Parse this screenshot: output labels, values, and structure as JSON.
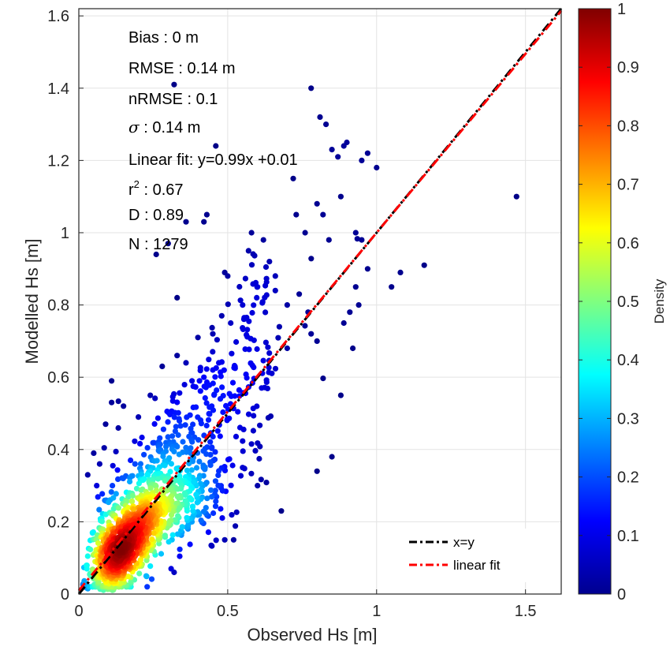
{
  "chart_data": {
    "type": "scatter",
    "xlabel": "Observed Hs [m]",
    "ylabel": "Modelled  Hs [m]",
    "xlim": [
      0,
      1.62
    ],
    "ylim": [
      0,
      1.62
    ],
    "x_ticks": [
      0,
      0.5,
      1,
      1.5
    ],
    "x_tick_labels": [
      "0",
      "0.5",
      "1",
      "1.5"
    ],
    "y_ticks": [
      0,
      0.2,
      0.4,
      0.6,
      0.8,
      1,
      1.2,
      1.4,
      1.6
    ],
    "y_tick_labels": [
      "0",
      "0.2",
      "0.4",
      "0.6",
      "0.8",
      "1",
      "1.2",
      "1.4",
      "1.6"
    ],
    "grid": true,
    "colorbar": {
      "label": "Density",
      "range": [
        0,
        1
      ],
      "ticks": [
        0,
        0.1,
        0.2,
        0.3,
        0.4,
        0.5,
        0.6,
        0.7,
        0.8,
        0.9,
        1
      ],
      "tick_labels": [
        "0",
        "0.1",
        "0.2",
        "0.3",
        "0.4",
        "0.5",
        "0.6",
        "0.7",
        "0.8",
        "0.9",
        "1"
      ],
      "colormap": "jet"
    },
    "stats": {
      "bias": "Bias : 0 m",
      "rmse": "RMSE : 0.14 m",
      "nrmse": "nRMSE : 0.1",
      "sigma_symbol": "σ",
      "sigma_value": " : 0.14 m",
      "linear_fit": "Linear fit: y=0.99x +0.01",
      "r2_prefix": "r",
      "r2_sup": "2",
      "r2_value": " : 0.67",
      "d": "D : 0.89",
      "n": "N : 1279"
    },
    "legend": {
      "placement": "bottom-right",
      "entries": [
        {
          "label": "x=y",
          "color": "#000000"
        },
        {
          "label": "linear fit",
          "color": "#ff0000"
        }
      ]
    },
    "lines": [
      {
        "name": "x=y",
        "slope": 1.0,
        "intercept": 0.0,
        "color": "#000000",
        "style": "dash-dot"
      },
      {
        "name": "linear fit",
        "slope": 0.99,
        "intercept": 0.01,
        "color": "#ff0000",
        "style": "dash-dot"
      }
    ],
    "points": [
      [
        1.47,
        1.1
      ],
      [
        1.16,
        0.91
      ],
      [
        1.08,
        0.89
      ],
      [
        1.05,
        0.85
      ],
      [
        0.78,
        1.4
      ],
      [
        0.81,
        1.32
      ],
      [
        0.83,
        1.3
      ],
      [
        0.9,
        1.25
      ],
      [
        0.89,
        1.24
      ],
      [
        0.97,
        1.22
      ],
      [
        0.95,
        1.2
      ],
      [
        1.0,
        1.18
      ],
      [
        0.85,
        1.23
      ],
      [
        0.87,
        1.21
      ],
      [
        0.32,
        1.41
      ],
      [
        0.46,
        1.24
      ],
      [
        0.43,
        1.05
      ],
      [
        0.42,
        1.03
      ],
      [
        0.36,
        1.03
      ],
      [
        0.26,
        0.94
      ],
      [
        0.3,
        0.97
      ],
      [
        0.49,
        0.89
      ],
      [
        0.5,
        0.88
      ],
      [
        0.57,
        0.95
      ],
      [
        0.58,
        1.0
      ],
      [
        0.62,
        0.98
      ],
      [
        0.64,
        0.92
      ],
      [
        0.66,
        0.88
      ],
      [
        0.72,
        1.15
      ],
      [
        0.73,
        1.05
      ],
      [
        0.76,
        1.0
      ],
      [
        0.8,
        1.08
      ],
      [
        0.82,
        1.05
      ],
      [
        0.84,
        0.98
      ],
      [
        0.88,
        1.1
      ],
      [
        0.93,
        1.0
      ],
      [
        0.95,
        0.98
      ],
      [
        0.97,
        0.9
      ],
      [
        0.93,
        0.85
      ],
      [
        0.94,
        0.8
      ],
      [
        0.91,
        0.78
      ],
      [
        0.89,
        0.75
      ],
      [
        0.92,
        0.68
      ],
      [
        0.88,
        0.55
      ],
      [
        0.85,
        0.38
      ],
      [
        0.8,
        0.34
      ],
      [
        0.68,
        0.23
      ],
      [
        0.6,
        0.3
      ],
      [
        0.55,
        0.35
      ],
      [
        0.33,
        0.82
      ],
      [
        0.4,
        0.71
      ],
      [
        0.45,
        0.72
      ],
      [
        0.48,
        0.77
      ],
      [
        0.51,
        0.75
      ],
      [
        0.55,
        0.8
      ],
      [
        0.6,
        0.85
      ],
      [
        0.66,
        0.84
      ],
      [
        0.7,
        0.8
      ],
      [
        0.74,
        0.83
      ],
      [
        0.77,
        0.78
      ],
      [
        0.8,
        0.7
      ],
      [
        0.78,
        0.72
      ],
      [
        0.7,
        0.68
      ],
      [
        0.52,
        0.15
      ],
      [
        0.49,
        0.15
      ],
      [
        0.32,
        0.06
      ],
      [
        0.31,
        0.07
      ],
      [
        0.11,
        0.59
      ],
      [
        0.11,
        0.53
      ],
      [
        0.09,
        0.47
      ],
      [
        0.05,
        0.39
      ],
      [
        0.03,
        0.33
      ],
      [
        0.07,
        0.36
      ],
      [
        0.06,
        0.3
      ],
      [
        0.15,
        0.52
      ],
      [
        0.2,
        0.49
      ],
      [
        0.24,
        0.55
      ],
      [
        0.28,
        0.63
      ],
      [
        0.33,
        0.66
      ],
      [
        0.36,
        0.64
      ],
      [
        0.38,
        0.59
      ],
      [
        0.42,
        0.6
      ],
      [
        0.45,
        0.62
      ],
      [
        0.47,
        0.64
      ]
    ]
  }
}
